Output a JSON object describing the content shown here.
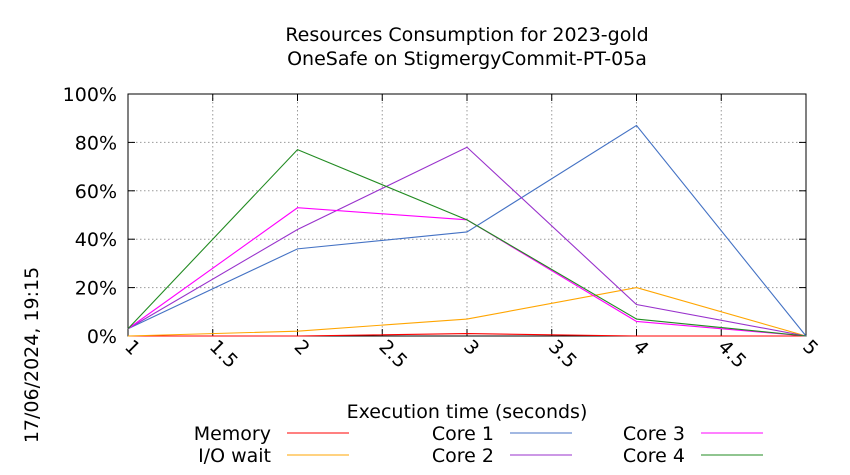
{
  "chart_data": {
    "type": "line",
    "title": "Resources Consumption for 2023-gold",
    "subtitle": "OneSafe on StigmergyCommit-PT-05a",
    "xlabel": "Execution time (seconds)",
    "ylabel": "",
    "side_label": "17/06/2024, 19:15",
    "xlim": [
      1,
      5
    ],
    "ylim": [
      0,
      100
    ],
    "x_ticks": [
      "1",
      "1.5",
      "2",
      "2.5",
      "3",
      "3.5",
      "4",
      "4.5",
      "5"
    ],
    "y_ticks": [
      "0%",
      "20%",
      "40%",
      "60%",
      "80%",
      "100%"
    ],
    "grid": true,
    "legend_position": "bottom",
    "x": [
      1,
      2,
      3,
      4,
      5
    ],
    "series": [
      {
        "name": "Memory",
        "color": "#ff0000",
        "values": [
          0,
          0,
          1,
          0,
          0
        ]
      },
      {
        "name": "I/O wait",
        "color": "#ffa500",
        "values": [
          0,
          2,
          7,
          20,
          0
        ]
      },
      {
        "name": "Core 1",
        "color": "#4472c4",
        "values": [
          3,
          36,
          43,
          87,
          0
        ]
      },
      {
        "name": "Core 2",
        "color": "#9932cc",
        "values": [
          3,
          44,
          78,
          13,
          0
        ]
      },
      {
        "name": "Core 3",
        "color": "#ff00ff",
        "values": [
          3,
          53,
          48,
          6,
          0
        ]
      },
      {
        "name": "Core 4",
        "color": "#228b22",
        "values": [
          3,
          77,
          48,
          7,
          0
        ]
      }
    ]
  }
}
